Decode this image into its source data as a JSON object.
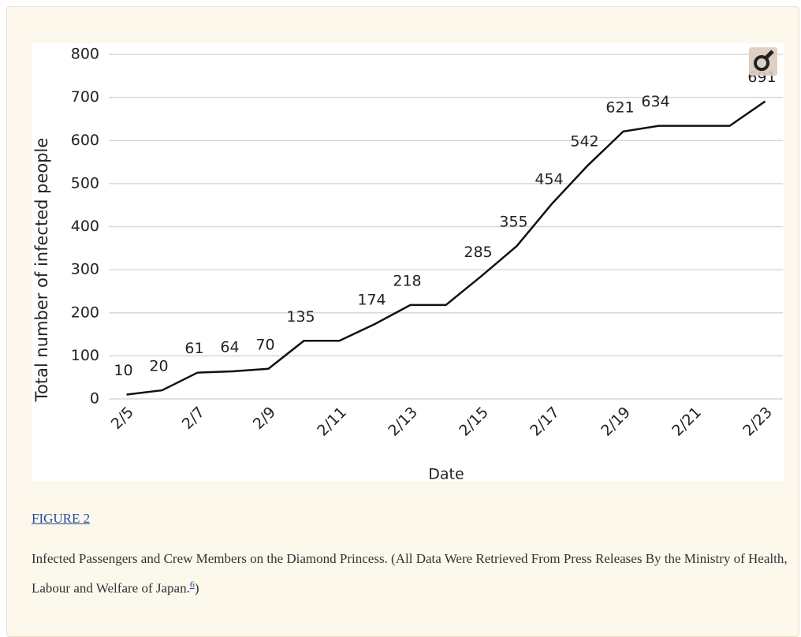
{
  "chart_data": {
    "type": "line",
    "xlabel": "Date",
    "ylabel": "Total number of infected people",
    "categories": [
      "2/5",
      null,
      "2/7",
      null,
      "2/9",
      null,
      "2/11",
      null,
      "2/13",
      null,
      "2/15",
      null,
      "2/17",
      null,
      "2/19",
      null,
      "2/21",
      null,
      "2/23"
    ],
    "values": [
      10,
      20,
      61,
      64,
      70,
      135,
      135,
      174,
      218,
      218,
      285,
      355,
      454,
      542,
      621,
      634,
      634,
      634,
      691
    ],
    "value_labels": [
      "10",
      "20",
      "61",
      "64",
      "70",
      "135",
      null,
      "174",
      "218",
      null,
      "285",
      "355",
      "454",
      "542",
      "621",
      "634",
      null,
      null,
      "691"
    ],
    "color": "#111111",
    "ylim": [
      0,
      800
    ],
    "yticks": [
      0,
      100,
      200,
      300,
      400,
      500,
      600,
      700,
      800
    ],
    "grid": true
  },
  "figure": {
    "label": "FIGURE 2",
    "caption": "Infected Passengers and Crew Members on the Diamond Princess. (All Data Were Retrieved From Press Releases By the Ministry of Health, Labour and Welfare of Japan.",
    "ref": "6",
    "caption_end": ")"
  }
}
